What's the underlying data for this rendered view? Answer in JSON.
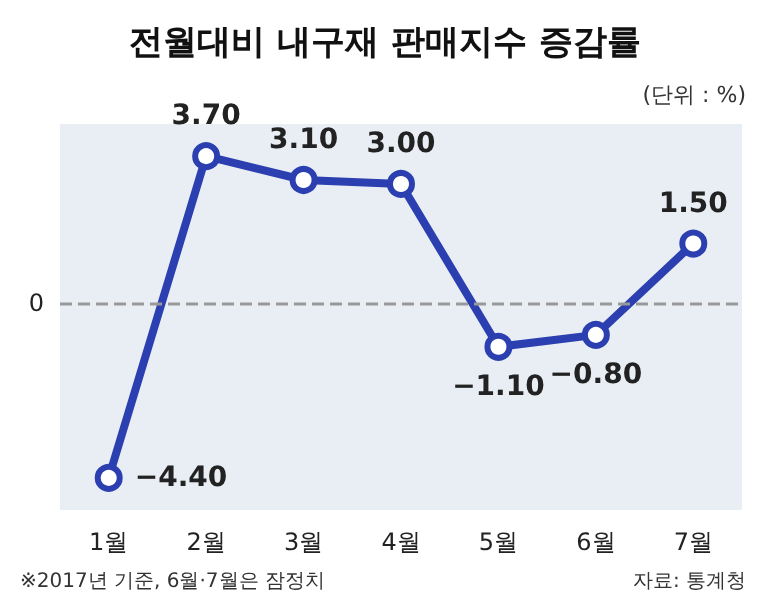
{
  "chart_data": {
    "type": "line",
    "title": "전월대비 내구재 판매지수 증감률",
    "categories": [
      "1월",
      "2월",
      "3월",
      "4월",
      "5월",
      "6월",
      "7월"
    ],
    "values": [
      -4.4,
      3.7,
      3.1,
      3.0,
      -1.1,
      -0.8,
      1.5
    ],
    "value_labels": [
      "−4.40",
      "3.70",
      "3.10",
      "3.00",
      "−1.10",
      "−0.80",
      "1.50"
    ],
    "color": "#2b3fb0",
    "marker": "circle",
    "line_style": "solid",
    "ref_lines": [
      {
        "axis": "y",
        "value": 0,
        "label": "0",
        "color": "#999999",
        "line_style": "dashed"
      }
    ],
    "annotations": [
      "(단위 : %)",
      "※2017년 기준, 6월·7월은 잠정치",
      "자료: 통계청"
    ]
  }
}
